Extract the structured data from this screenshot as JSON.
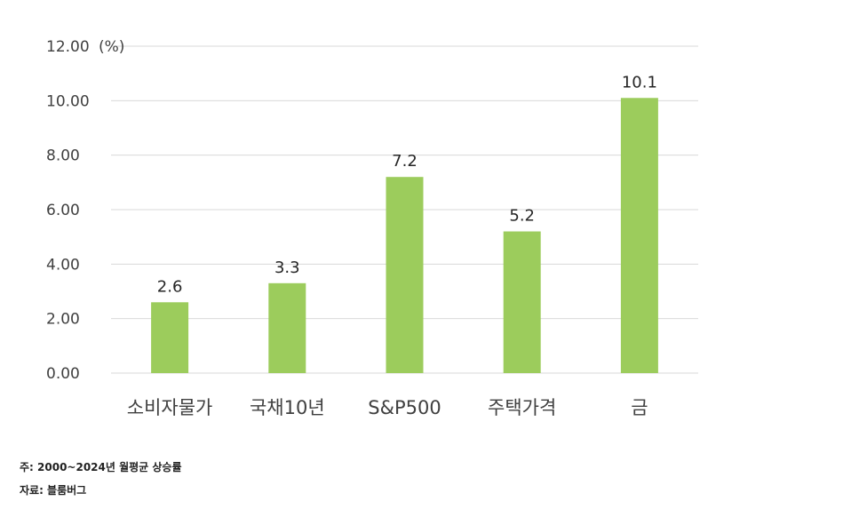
{
  "chart_data": {
    "type": "bar",
    "unit": "(%)",
    "categories": [
      "소비자물가",
      "국채10년",
      "S&P500",
      "주택가격",
      "금"
    ],
    "values": [
      2.6,
      3.3,
      7.2,
      5.2,
      10.1
    ],
    "data_labels": [
      "2.6",
      "3.3",
      "7.2",
      "5.2",
      "10.1"
    ],
    "ylim": [
      0,
      12
    ],
    "yticks": [
      "0.00",
      "2.00",
      "4.00",
      "6.00",
      "8.00",
      "10.00",
      "12.00"
    ],
    "grid": true,
    "legend": "none",
    "bar_color": "#9ccc5c"
  },
  "notes": {
    "note": "주: 2000~2024년 월평균 상승률",
    "source": "자료: 블룸버그"
  }
}
